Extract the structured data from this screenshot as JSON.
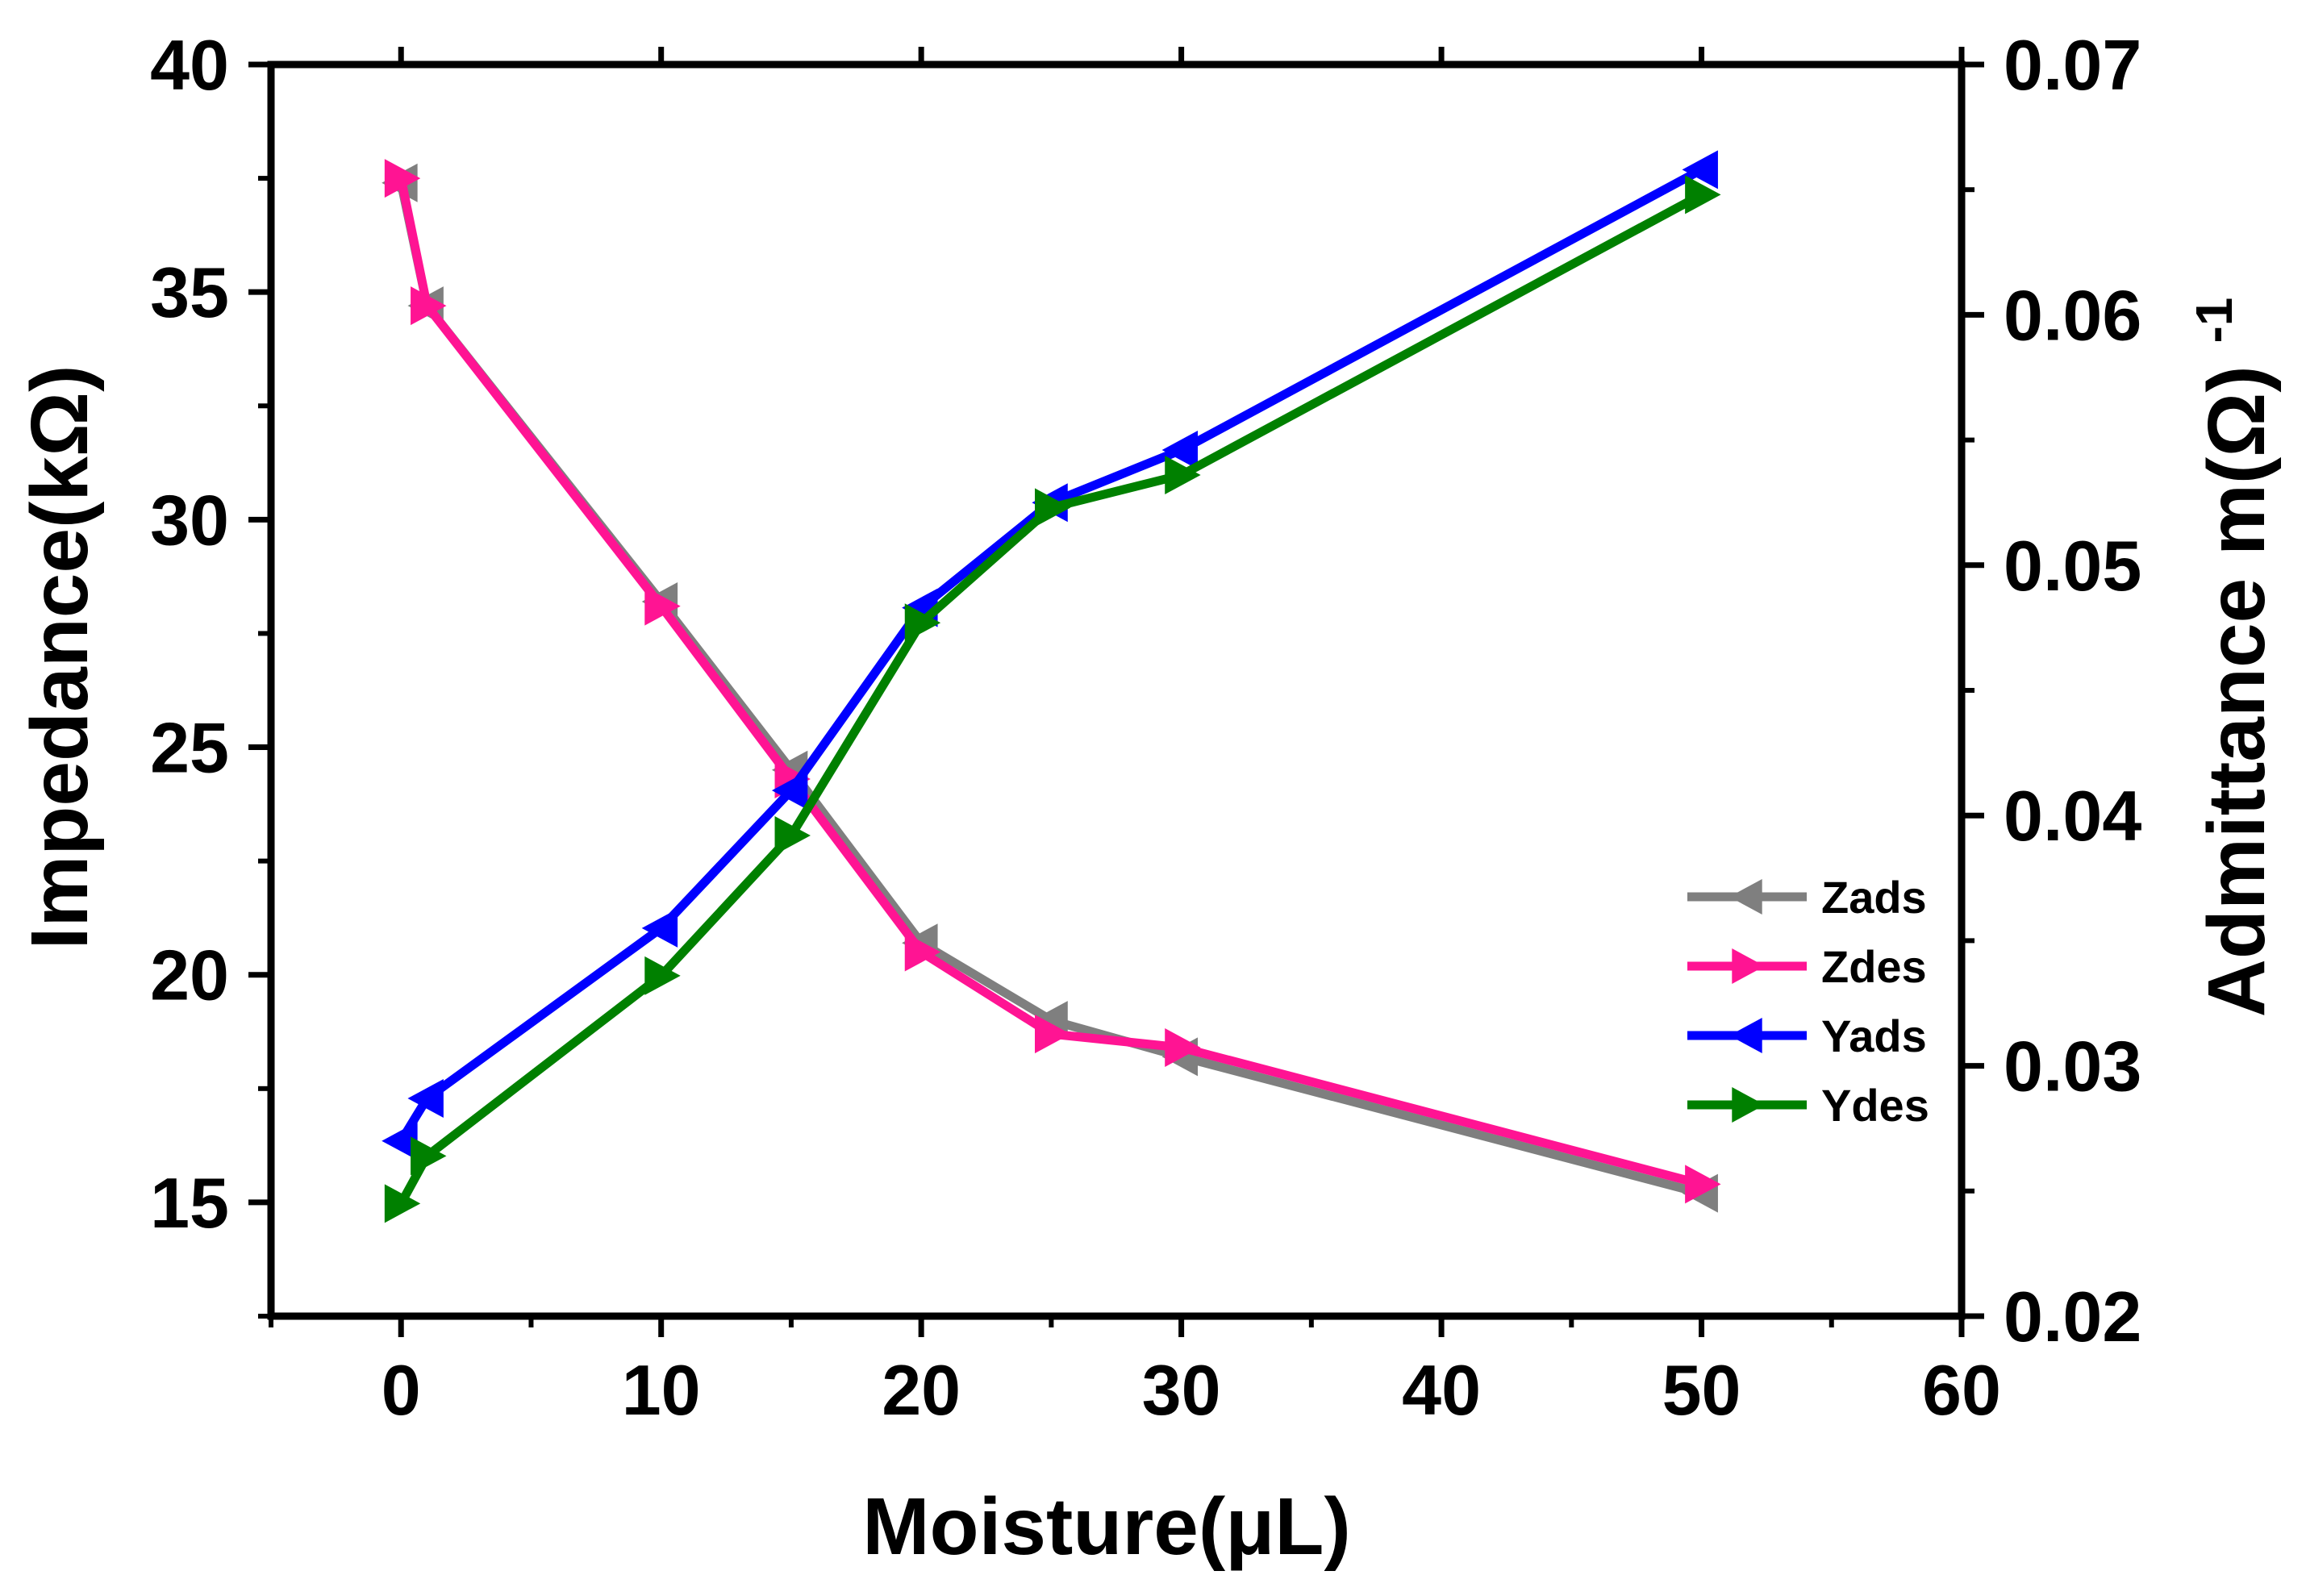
{
  "chart_data": {
    "type": "line",
    "title": "",
    "xlabel": "Moisture(μL)",
    "ylabel_left": "Impedance(kΩ)",
    "ylabel_right_base": "Admittance m(Ω)",
    "ylabel_right_sup": "-1",
    "xlim": [
      -5,
      60
    ],
    "ylim_left": [
      12.5,
      40
    ],
    "ylim_right": [
      0.02,
      0.07
    ],
    "x_ticks": [
      0,
      10,
      20,
      30,
      40,
      50,
      60
    ],
    "x_tick_labels": [
      "0",
      "10",
      "20",
      "30",
      "40",
      "50",
      "60"
    ],
    "y_left_ticks": [
      15,
      20,
      25,
      30,
      35,
      40
    ],
    "y_left_tick_labels": [
      "15",
      "20",
      "25",
      "30",
      "35",
      "40"
    ],
    "y_right_ticks": [
      0.02,
      0.03,
      0.04,
      0.05,
      0.06,
      0.07
    ],
    "y_right_tick_labels": [
      "0.02",
      "0.03",
      "0.04",
      "0.05",
      "0.06",
      "0.07"
    ],
    "legend_position": "right",
    "grid": false,
    "series": [
      {
        "name": "Zads",
        "axis": "left",
        "color": "#7f7f7f",
        "marker": "triangle-left",
        "x": [
          0,
          1,
          10,
          15,
          20,
          25,
          30,
          50
        ],
        "y": [
          37.4,
          34.7,
          28.2,
          24.5,
          20.7,
          19.0,
          18.2,
          15.2
        ]
      },
      {
        "name": "Zdes",
        "axis": "left",
        "color": "#ff1493",
        "marker": "triangle-right",
        "x": [
          0,
          1,
          10,
          15,
          20,
          25,
          30,
          50
        ],
        "y": [
          37.5,
          34.7,
          28.1,
          24.3,
          20.5,
          18.7,
          18.4,
          15.4
        ]
      },
      {
        "name": "Yads",
        "axis": "right",
        "color": "#0000ff",
        "marker": "triangle-left",
        "x": [
          0,
          1,
          10,
          15,
          20,
          25,
          30,
          50
        ],
        "y": [
          0.027,
          0.0287,
          0.0355,
          0.041,
          0.0483,
          0.0525,
          0.0546,
          0.0658
        ]
      },
      {
        "name": "Ydes",
        "axis": "right",
        "color": "#008000",
        "marker": "triangle-right",
        "x": [
          0,
          1,
          10,
          15,
          20,
          25,
          30,
          50
        ],
        "y": [
          0.0245,
          0.0264,
          0.0336,
          0.0392,
          0.0477,
          0.0523,
          0.0536,
          0.0648
        ]
      }
    ]
  }
}
